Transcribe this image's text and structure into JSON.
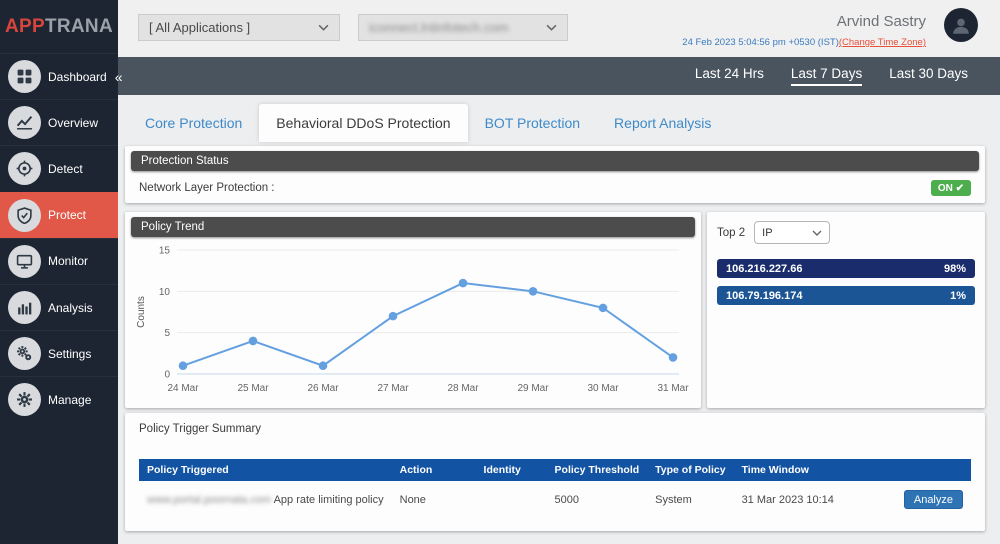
{
  "brand": {
    "logo_primary": "APP",
    "logo_secondary": "TRANA"
  },
  "sidebar": {
    "items": [
      {
        "label": "Dashboard",
        "icon": "dashboard-icon",
        "collapse": "«",
        "active": false
      },
      {
        "label": "Overview",
        "icon": "overview-icon",
        "active": false
      },
      {
        "label": "Detect",
        "icon": "detect-icon",
        "active": false
      },
      {
        "label": "Protect",
        "icon": "protect-icon",
        "active": true
      },
      {
        "label": "Monitor",
        "icon": "monitor-icon",
        "active": false
      },
      {
        "label": "Analysis",
        "icon": "analysis-icon",
        "active": false
      },
      {
        "label": "Settings",
        "icon": "settings-icon",
        "active": false
      },
      {
        "label": "Manage",
        "icon": "manage-icon",
        "active": false
      }
    ],
    "active_color": "#e15849"
  },
  "topbar": {
    "app_selector": {
      "value": "[ All Applications ]"
    },
    "domain_selector": {
      "value": "iconnect.lntinfotech.com",
      "blurred": true
    },
    "user": {
      "name": "Arvind Sastry"
    },
    "timestamp": {
      "datetime": "24 Feb 2023 5:04:56 pm +0530 (IST)",
      "change_link": "(Change Time Zone)"
    }
  },
  "rangebar": {
    "options": [
      {
        "label": "Last 24 Hrs",
        "active": false
      },
      {
        "label": "Last 7 Days",
        "active": true
      },
      {
        "label": "Last 30 Days",
        "active": false
      }
    ]
  },
  "tabs": [
    {
      "label": "Core Protection",
      "active": false
    },
    {
      "label": "Behavioral DDoS Protection",
      "active": true
    },
    {
      "label": "BOT Protection",
      "active": false
    },
    {
      "label": "Report Analysis",
      "active": false
    }
  ],
  "protection_status": {
    "header": "Protection Status",
    "row_label": "Network Layer Protection :",
    "status": "ON",
    "check_glyph": "✔",
    "status_color": "#4cae4c"
  },
  "policy_trend": {
    "header": "Policy Trend",
    "chart_data": {
      "type": "line",
      "x": [
        "24 Mar",
        "25 Mar",
        "26 Mar",
        "27 Mar",
        "28 Mar",
        "29 Mar",
        "30 Mar",
        "31 Mar"
      ],
      "values": [
        1,
        4,
        1,
        7,
        11,
        10,
        8,
        2
      ],
      "title": "",
      "xlabel": "",
      "ylabel": "Counts",
      "yticks": [
        0,
        5,
        10,
        15
      ],
      "ylim": [
        0,
        15
      ],
      "grid": true,
      "line_color": "#64a0e0",
      "marker": "circle"
    }
  },
  "top2": {
    "label": "Top 2",
    "selector_value": "IP",
    "bars": [
      {
        "value": "106.216.227.66",
        "pct": "98%",
        "color": "#1a2c6b"
      },
      {
        "value": "106.79.196.174",
        "pct": "1%",
        "color": "#1c5596"
      }
    ]
  },
  "policy_trigger_summary": {
    "title": "Policy Trigger Summary",
    "columns": [
      "Policy Triggered",
      "Action",
      "Identity",
      "Policy Threshold",
      "Type of Policy",
      "Time Window",
      ""
    ],
    "col_widths": [
      "24%",
      "13%",
      "10%",
      "10%",
      "10%",
      "19%",
      "14%"
    ],
    "rows": [
      {
        "domain": "www.portal.poornata.com",
        "domain_blurred": true,
        "policy": "App rate limiting policy",
        "action": "None",
        "identity": "",
        "threshold": "5000",
        "type_of_policy": "System",
        "time_window": "31 Mar 2023 10:14",
        "analyze_label": "Analyze"
      }
    ]
  }
}
